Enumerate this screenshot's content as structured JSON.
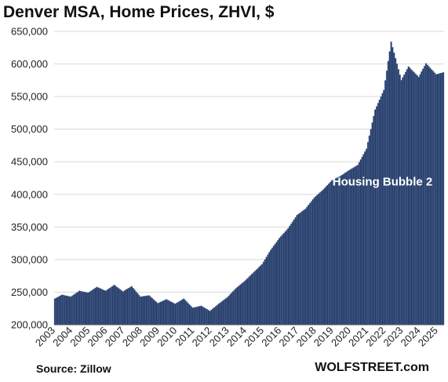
{
  "header": {
    "title": "Denver MSA, Home Prices, ZHVI, $"
  },
  "footer": {
    "source": "Source: Zillow",
    "site": "WOLFSTREET.com"
  },
  "colors": {
    "bar": "#1f3864",
    "bar_edge": "#6c7ea6",
    "grid": "#d9d9d9"
  },
  "chart_data": {
    "type": "bar",
    "title": "Denver MSA, Home Prices, ZHVI, $",
    "xlabel": "",
    "ylabel": "",
    "ylim": [
      200000,
      650000
    ],
    "yticks": [
      200000,
      250000,
      300000,
      350000,
      400000,
      450000,
      500000,
      550000,
      600000,
      650000
    ],
    "ytick_labels": [
      "200,000",
      "250,000",
      "300,000",
      "350,000",
      "400,000",
      "450,000",
      "500,000",
      "550,000",
      "600,000",
      "650,000"
    ],
    "xtick_labels": [
      "2003",
      "2004",
      "2005",
      "2006",
      "2007",
      "2008",
      "2009",
      "2010",
      "2011",
      "2012",
      "2013",
      "2014",
      "2015",
      "2016",
      "2017",
      "2018",
      "2019",
      "2020",
      "2021",
      "2022",
      "2023",
      "2024",
      "2025"
    ],
    "grid": true,
    "frequency": "monthly",
    "start": "2003-01",
    "end": "2025-05",
    "annotations": [
      {
        "text": "Housing Bubble 2",
        "date": "2019-01",
        "value": 410000
      }
    ],
    "anchors": [
      [
        "2003-01",
        240000
      ],
      [
        "2003-06",
        246000
      ],
      [
        "2003-12",
        243000
      ],
      [
        "2004-06",
        252000
      ],
      [
        "2004-12",
        249000
      ],
      [
        "2005-06",
        258000
      ],
      [
        "2005-12",
        252000
      ],
      [
        "2006-06",
        261000
      ],
      [
        "2006-12",
        251000
      ],
      [
        "2007-06",
        259000
      ],
      [
        "2007-12",
        243000
      ],
      [
        "2008-06",
        245000
      ],
      [
        "2008-12",
        233000
      ],
      [
        "2009-06",
        239000
      ],
      [
        "2009-12",
        232000
      ],
      [
        "2010-06",
        240000
      ],
      [
        "2010-12",
        226000
      ],
      [
        "2011-06",
        229000
      ],
      [
        "2011-12",
        221000
      ],
      [
        "2012-06",
        232000
      ],
      [
        "2012-12",
        242000
      ],
      [
        "2013-06",
        256000
      ],
      [
        "2013-12",
        267000
      ],
      [
        "2014-06",
        280000
      ],
      [
        "2014-12",
        293000
      ],
      [
        "2015-06",
        315000
      ],
      [
        "2015-12",
        333000
      ],
      [
        "2016-06",
        348000
      ],
      [
        "2016-12",
        368000
      ],
      [
        "2017-06",
        378000
      ],
      [
        "2017-12",
        395000
      ],
      [
        "2018-06",
        407000
      ],
      [
        "2018-12",
        421000
      ],
      [
        "2019-06",
        428000
      ],
      [
        "2019-12",
        437000
      ],
      [
        "2020-06",
        445000
      ],
      [
        "2020-12",
        470000
      ],
      [
        "2021-06",
        530000
      ],
      [
        "2021-12",
        560000
      ],
      [
        "2022-05",
        634000
      ],
      [
        "2022-12",
        575000
      ],
      [
        "2023-05",
        596000
      ],
      [
        "2023-12",
        580000
      ],
      [
        "2024-05",
        601000
      ],
      [
        "2024-12",
        584000
      ],
      [
        "2025-05",
        587000
      ]
    ]
  }
}
